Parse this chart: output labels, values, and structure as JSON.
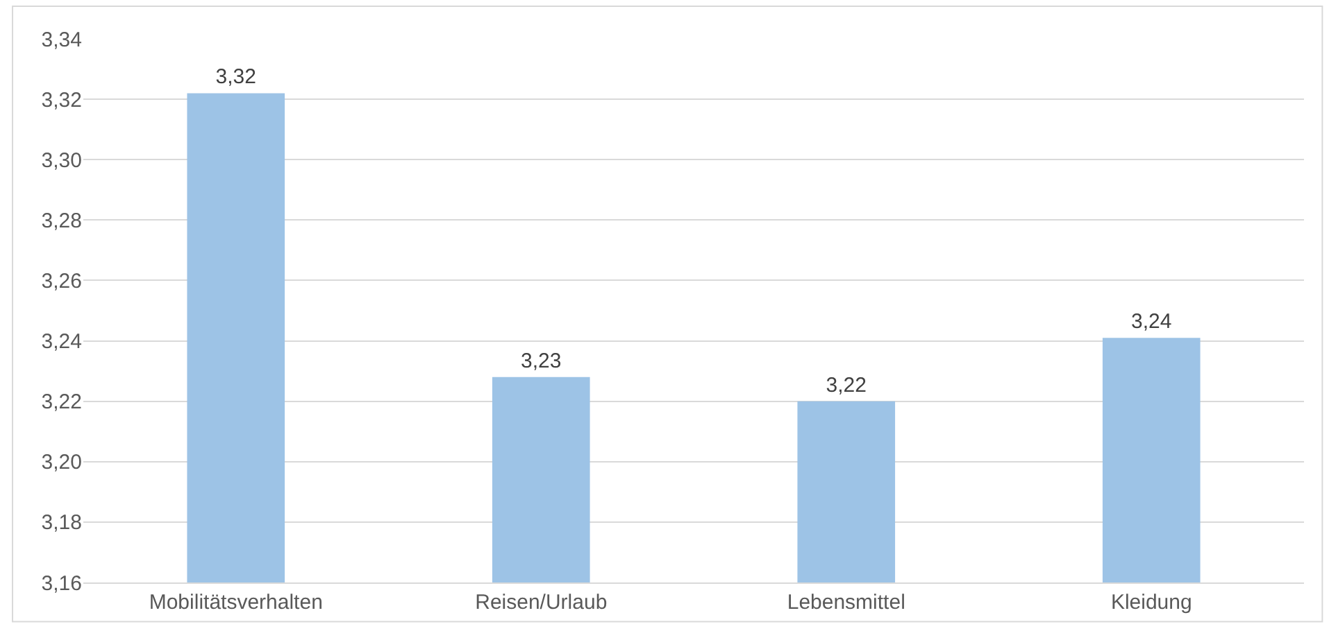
{
  "chart_data": {
    "type": "bar",
    "categories": [
      "Mobilitätsverhalten",
      "Reisen/Urlaub",
      "Lebensmittel",
      "Kleidung"
    ],
    "values": [
      3.322,
      3.228,
      3.22,
      3.241
    ],
    "value_labels": [
      "3,32",
      "3,23",
      "3,22",
      "3,24"
    ],
    "color": "#9dc3e6",
    "ylim": [
      3.16,
      3.34
    ],
    "yticks": [
      {
        "value": 3.16,
        "label": "3,16"
      },
      {
        "value": 3.18,
        "label": "3,18"
      },
      {
        "value": 3.2,
        "label": "3,20"
      },
      {
        "value": 3.22,
        "label": "3,22"
      },
      {
        "value": 3.24,
        "label": "3,24"
      },
      {
        "value": 3.26,
        "label": "3,26"
      },
      {
        "value": 3.28,
        "label": "3,28"
      },
      {
        "value": 3.3,
        "label": "3,30"
      },
      {
        "value": 3.32,
        "label": "3,32"
      },
      {
        "value": 3.34,
        "label": "3,34"
      }
    ],
    "grid": "y"
  }
}
